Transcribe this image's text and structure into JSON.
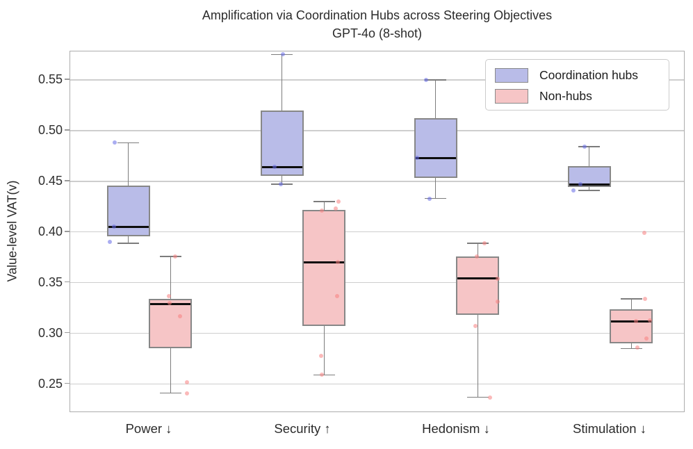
{
  "title": {
    "line1": "Amplification via Coordination Hubs across Steering Objectives",
    "line2": "GPT-4o (8-shot)"
  },
  "y_axis": {
    "label": "Value-level VAT(v)"
  },
  "legend": {
    "items": [
      {
        "label": "Coordination hubs",
        "color": "#b9bce8"
      },
      {
        "label": "Non-hubs",
        "color": "#f6c5c6"
      }
    ]
  },
  "colors": {
    "box_border": "#878787",
    "whisker": "#7c7c7c",
    "median": "#0d0d0d",
    "gridline": "#cecece",
    "hub_point": "rgba(100,105,230,0.55)",
    "nonhub_point": "rgba(247,128,128,0.55)"
  },
  "chart_data": {
    "type": "boxplot",
    "title": "Amplification via Coordination Hubs across Steering Objectives",
    "subtitle": "GPT-4o (8-shot)",
    "ylabel": "Value-level VAT(v)",
    "ylim": [
      0.2216,
      0.578
    ],
    "yticks": [
      0.25,
      0.3,
      0.35,
      0.4,
      0.45,
      0.5,
      0.55
    ],
    "grid": true,
    "legend_position": "upper right",
    "categories": [
      "Power ↓",
      "Security ↑",
      "Hedonism ↓",
      "Stimulation ↓"
    ],
    "series": [
      {
        "name": "Coordination hubs",
        "fill": "#b9bce8",
        "point_color": "rgba(100,105,230,0.55)",
        "boxes": [
          {
            "whislo": 0.389,
            "q1": 0.396,
            "med": 0.405,
            "q3": 0.446,
            "whishi": 0.488,
            "points": [
              {
                "v": 0.488,
                "dx": -20
              },
              {
                "v": 0.405,
                "dx": -21
              },
              {
                "v": 0.39,
                "dx": -27
              }
            ]
          },
          {
            "whislo": 0.447,
            "q1": 0.455,
            "med": 0.464,
            "q3": 0.52,
            "whishi": 0.575,
            "points": [
              {
                "v": 0.575,
                "dx": 1
              },
              {
                "v": 0.464,
                "dx": -11
              },
              {
                "v": 0.447,
                "dx": -2
              }
            ]
          },
          {
            "whislo": 0.433,
            "q1": 0.453,
            "med": 0.473,
            "q3": 0.512,
            "whishi": 0.55,
            "points": [
              {
                "v": 0.55,
                "dx": -14
              },
              {
                "v": 0.473,
                "dx": -27
              },
              {
                "v": 0.433,
                "dx": -9
              }
            ]
          },
          {
            "whislo": 0.441,
            "q1": 0.444,
            "med": 0.447,
            "q3": 0.465,
            "whishi": 0.484,
            "points": [
              {
                "v": 0.484,
                "dx": -7
              },
              {
                "v": 0.447,
                "dx": -13
              },
              {
                "v": 0.441,
                "dx": -23
              }
            ]
          }
        ]
      },
      {
        "name": "Non-hubs",
        "fill": "#f6c5c6",
        "point_color": "rgba(247,128,128,0.55)",
        "boxes": [
          {
            "whislo": 0.241,
            "q1": 0.285,
            "med": 0.329,
            "q3": 0.334,
            "whishi": 0.376,
            "points": [
              {
                "v": 0.376,
                "dx": 7
              },
              {
                "v": 0.337,
                "dx": -2
              },
              {
                "v": 0.33,
                "dx": -1
              },
              {
                "v": 0.317,
                "dx": 14
              },
              {
                "v": 0.252,
                "dx": 24
              },
              {
                "v": 0.241,
                "dx": 24
              }
            ]
          },
          {
            "whislo": 0.259,
            "q1": 0.307,
            "med": 0.37,
            "q3": 0.422,
            "whishi": 0.43,
            "points": [
              {
                "v": 0.43,
                "dx": 21
              },
              {
                "v": 0.423,
                "dx": 17
              },
              {
                "v": 0.421,
                "dx": -3
              },
              {
                "v": 0.37,
                "dx": 20
              },
              {
                "v": 0.337,
                "dx": 19
              },
              {
                "v": 0.278,
                "dx": -4
              },
              {
                "v": 0.259,
                "dx": -3
              }
            ]
          },
          {
            "whislo": 0.237,
            "q1": 0.318,
            "med": 0.354,
            "q3": 0.376,
            "whishi": 0.389,
            "points": [
              {
                "v": 0.389,
                "dx": 10
              },
              {
                "v": 0.376,
                "dx": -1
              },
              {
                "v": 0.354,
                "dx": 29
              },
              {
                "v": 0.331,
                "dx": 29
              },
              {
                "v": 0.307,
                "dx": -3
              },
              {
                "v": 0.237,
                "dx": 18
              }
            ]
          },
          {
            "whislo": 0.285,
            "q1": 0.29,
            "med": 0.312,
            "q3": 0.324,
            "whishi": 0.334,
            "points": [
              {
                "v": 0.399,
                "dx": 19
              },
              {
                "v": 0.334,
                "dx": 20
              },
              {
                "v": 0.313,
                "dx": 27
              },
              {
                "v": 0.312,
                "dx": 7
              },
              {
                "v": 0.295,
                "dx": 22
              },
              {
                "v": 0.286,
                "dx": 9
              }
            ]
          }
        ]
      }
    ]
  }
}
